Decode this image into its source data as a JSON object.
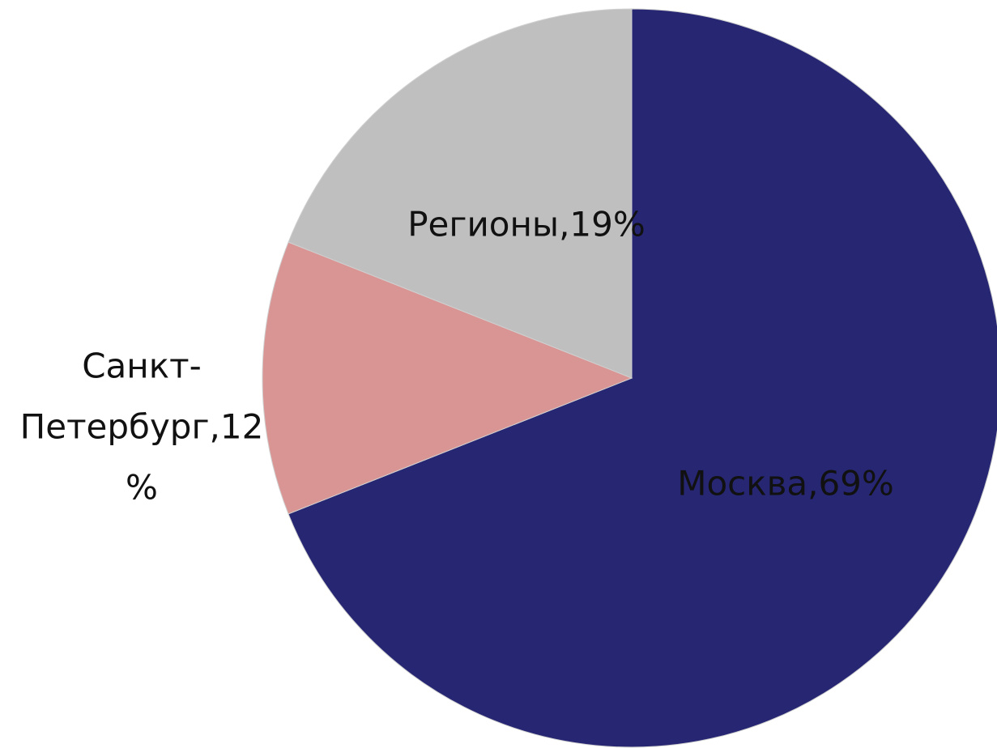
{
  "chart_data": {
    "type": "pie",
    "values": [
      69,
      12,
      19
    ],
    "value_labels": [
      [
        "Москва,69%"
      ],
      [
        "Санкт-",
        "Петербург,12",
        "%"
      ],
      [
        "Регионы,19%"
      ]
    ],
    "colors": [
      "#262673",
      "#d99594",
      "#bfbfbf"
    ],
    "start_angle": 0,
    "direction": "clockwise"
  }
}
